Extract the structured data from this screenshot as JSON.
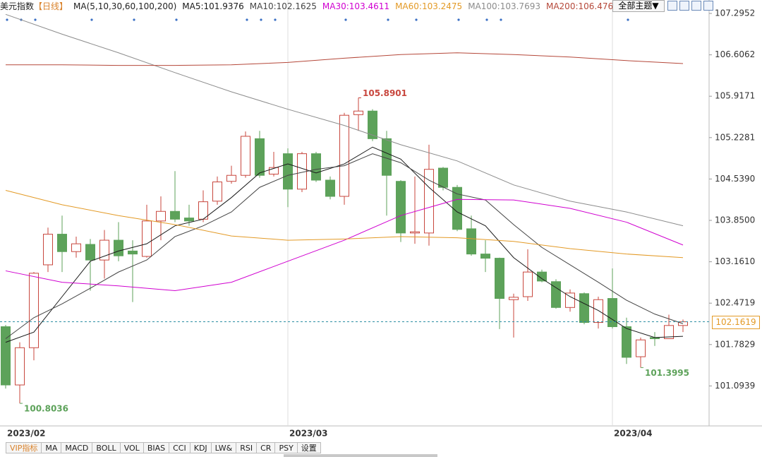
{
  "header": {
    "title": "美元指数",
    "period": "【日线】",
    "indicator": "MA(5,10,30,60,100,200)",
    "theme_button": "全部主题▼"
  },
  "tabs": [
    "VIP指标",
    "MA",
    "MACD",
    "BOLL",
    "VOL",
    "BIAS",
    "CCI",
    "KDJ",
    "LW&",
    "RSI",
    "CR",
    "PSY",
    "设置"
  ],
  "chart_data": {
    "type": "candlestick",
    "categories": [
      "2023/02",
      null,
      null,
      null,
      null,
      null,
      null,
      null,
      null,
      null,
      null,
      null,
      null,
      null,
      null,
      null,
      null,
      null,
      null,
      null,
      "2023/03",
      null,
      null,
      null,
      null,
      null,
      null,
      null,
      null,
      null,
      null,
      null,
      null,
      null,
      null,
      null,
      null,
      null,
      null,
      null,
      null,
      null,
      null,
      "2023/04",
      null,
      null,
      null,
      null,
      null
    ],
    "open": [
      102.08,
      101.11,
      101.73,
      103.11,
      103.62,
      103.33,
      103.45,
      103.19,
      103.52,
      103.34,
      103.25,
      103.84,
      104.0,
      103.89,
      103.87,
      104.17,
      104.5,
      104.6,
      105.21,
      104.62,
      104.96,
      104.37,
      104.96,
      104.52,
      104.25,
      105.61,
      105.67,
      105.21,
      104.5,
      103.64,
      103.64,
      104.72,
      104.4,
      103.71,
      103.29,
      103.22,
      102.53,
      102.58,
      102.99,
      102.83,
      102.4,
      102.63,
      102.15,
      102.55,
      102.08,
      101.58,
      101.9,
      101.88,
      102.1
    ],
    "high": [
      102.11,
      101.82,
      102.99,
      103.73,
      103.93,
      103.58,
      103.54,
      103.69,
      103.82,
      103.52,
      104.11,
      104.25,
      104.67,
      104.11,
      104.35,
      104.58,
      104.76,
      105.33,
      105.34,
      104.99,
      105.05,
      104.99,
      104.99,
      104.58,
      105.64,
      105.8901,
      105.7,
      105.34,
      104.52,
      104.58,
      105.11,
      104.74,
      104.44,
      103.93,
      103.52,
      103.23,
      102.63,
      103.37,
      103.03,
      102.87,
      102.7,
      102.65,
      102.58,
      103.05,
      102.23,
      101.9,
      101.99,
      102.28,
      102.2
    ],
    "low": [
      101.05,
      100.8036,
      101.52,
      102.99,
      102.99,
      103.23,
      102.68,
      102.88,
      103.17,
      102.49,
      103.23,
      103.52,
      103.82,
      103.76,
      103.82,
      104.11,
      104.46,
      104.56,
      104.56,
      104.58,
      104.07,
      104.32,
      104.49,
      104.2,
      104.11,
      105.34,
      105.17,
      103.93,
      103.49,
      103.46,
      103.43,
      104.35,
      103.67,
      103.26,
      102.99,
      102.04,
      101.9,
      102.51,
      102.82,
      102.38,
      102.33,
      102.12,
      102.05,
      102.05,
      101.46,
      101.3995,
      101.76,
      101.88,
      101.99
    ],
    "close": [
      101.11,
      101.73,
      102.97,
      103.62,
      103.33,
      103.46,
      103.19,
      103.52,
      103.26,
      103.29,
      103.84,
      104.0,
      103.87,
      103.84,
      104.16,
      104.49,
      104.6,
      105.25,
      104.6,
      104.73,
      104.37,
      104.96,
      104.52,
      104.25,
      105.6,
      105.67,
      105.21,
      104.6,
      103.64,
      103.66,
      104.7,
      104.4,
      103.7,
      103.29,
      103.22,
      102.55,
      102.57,
      102.99,
      102.84,
      102.4,
      102.64,
      102.15,
      102.53,
      102.08,
      101.57,
      101.86,
      101.88,
      102.1,
      102.1619
    ],
    "up_color": "#c8473e",
    "down_color": "#5da25a",
    "ma_series": [
      {
        "name": "MA5:101.9376",
        "color": "#1a1a1a",
        "x": [
          0,
          2,
          4,
          6,
          8,
          10,
          12,
          14,
          16,
          18,
          20,
          22,
          24,
          26,
          28,
          30,
          32,
          34,
          36,
          38,
          40,
          42,
          44,
          46,
          48
        ],
        "values": [
          101.82,
          101.99,
          102.58,
          103.17,
          103.34,
          103.46,
          103.76,
          103.87,
          104.23,
          104.64,
          104.79,
          104.64,
          104.79,
          105.07,
          104.87,
          104.4,
          103.99,
          103.76,
          103.23,
          102.88,
          102.58,
          102.35,
          102.05,
          101.9,
          101.92
        ]
      },
      {
        "name": "MA10:102.1625",
        "color": "#444444",
        "x": [
          0,
          2,
          4,
          6,
          8,
          10,
          12,
          14,
          16,
          18,
          20,
          22,
          24,
          26,
          28,
          30,
          32,
          34,
          36,
          38,
          40,
          42,
          44,
          46,
          48
        ],
        "values": [
          101.88,
          102.23,
          102.46,
          102.72,
          102.99,
          103.19,
          103.58,
          103.76,
          103.99,
          104.4,
          104.6,
          104.7,
          104.76,
          104.96,
          104.81,
          104.52,
          104.29,
          104.19,
          103.78,
          103.4,
          103.11,
          102.82,
          102.52,
          102.29,
          102.13
        ]
      },
      {
        "name": "MA30:103.4611",
        "color": "#d000d0",
        "x": [
          0,
          4,
          8,
          12,
          16,
          20,
          24,
          28,
          32,
          36,
          40,
          44,
          48
        ],
        "values": [
          103.01,
          102.82,
          102.76,
          102.68,
          102.82,
          103.17,
          103.52,
          103.93,
          104.2,
          104.19,
          104.05,
          103.82,
          103.44
        ]
      },
      {
        "name": "MA60:103.2475",
        "color": "#e39a26",
        "x": [
          0,
          4,
          8,
          12,
          16,
          20,
          24,
          28,
          32,
          36,
          40,
          44,
          48
        ],
        "values": [
          104.35,
          104.11,
          103.93,
          103.78,
          103.59,
          103.52,
          103.54,
          103.58,
          103.56,
          103.5,
          103.38,
          103.29,
          103.23
        ]
      },
      {
        "name": "MA100:103.7693",
        "color": "#8c8c8c",
        "x": [
          0,
          4,
          8,
          12,
          16,
          20,
          24,
          28,
          32,
          36,
          40,
          44,
          48
        ],
        "values": [
          107.28,
          106.95,
          106.64,
          106.31,
          105.99,
          105.7,
          105.43,
          105.11,
          104.84,
          104.44,
          104.17,
          103.99,
          103.76
        ]
      },
      {
        "name": "MA200:106.476",
        "color": "#b5483a",
        "x": [
          0,
          4,
          8,
          12,
          16,
          20,
          24,
          28,
          32,
          36,
          40,
          44,
          48
        ],
        "values": [
          106.44,
          106.44,
          106.43,
          106.43,
          106.44,
          106.48,
          106.55,
          106.61,
          106.64,
          106.61,
          106.57,
          106.51,
          106.46
        ]
      }
    ],
    "ylim": [
      100.428,
      107.519
    ],
    "yticks": [
      107.2952,
      106.6062,
      105.9171,
      105.2281,
      {
        "value": 104.539,
        "label": "104.5390"
      },
      {
        "value": 103.85,
        "label": "103.8500"
      },
      {
        "value": 103.161,
        "label": "103.1610"
      },
      102.4719,
      101.7829,
      101.0939
    ]
  }
}
